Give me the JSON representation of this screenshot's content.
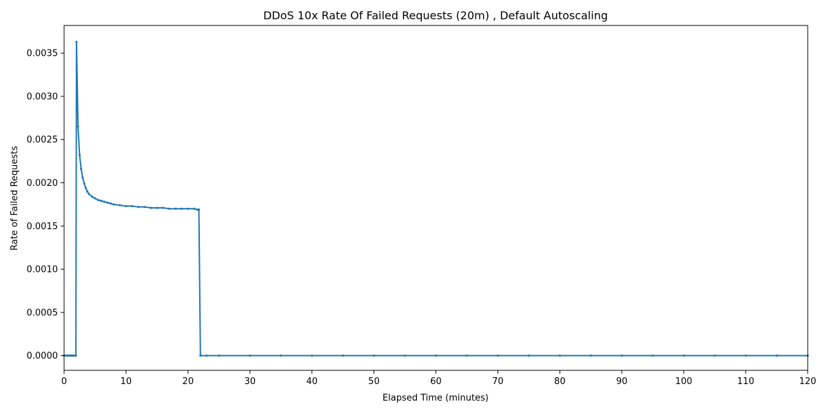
{
  "chart_data": {
    "type": "line",
    "title": "DDoS 10x Rate Of Failed Requests (20m) , Default Autoscaling",
    "xlabel": "Elapsed Time (minutes)",
    "ylabel": "Rate of Failed Requests",
    "xlim": [
      0,
      120
    ],
    "ylim": [
      -0.00017,
      0.00382
    ],
    "xticks": [
      0,
      10,
      20,
      30,
      40,
      50,
      60,
      70,
      80,
      90,
      100,
      110,
      120
    ],
    "yticks": [
      0.0,
      0.0005,
      0.001,
      0.0015,
      0.002,
      0.0025,
      0.003,
      0.0035
    ],
    "xtick_labels": [
      "0",
      "10",
      "20",
      "30",
      "40",
      "50",
      "60",
      "70",
      "80",
      "90",
      "100",
      "110",
      "120"
    ],
    "ytick_labels": [
      "0.0000",
      "0.0005",
      "0.0010",
      "0.0015",
      "0.0020",
      "0.0025",
      "0.0030",
      "0.0035"
    ],
    "grid": false,
    "line_color": "#1f77b4",
    "series": [
      {
        "x": [
          0,
          0.25,
          0.5,
          0.75,
          1.0,
          1.25,
          1.5,
          1.75,
          1.9,
          2.0,
          2.25,
          2.5,
          2.75,
          3.0,
          3.25,
          3.5,
          3.75,
          4.0,
          4.5,
          5.0,
          5.5,
          6.0,
          6.5,
          7.0,
          7.5,
          8.0,
          9.0,
          10.0,
          11.0,
          12.0,
          13.0,
          14.0,
          15.0,
          16.0,
          17.0,
          18.0,
          19.0,
          20.0,
          21.0,
          21.5,
          21.75,
          22.0,
          23.0,
          25.0,
          30.0,
          35.0,
          40.0,
          45.0,
          50.0,
          55.0,
          60.0,
          65.0,
          70.0,
          75.0,
          80.0,
          85.0,
          90.0,
          95.0,
          100.0,
          105.0,
          110.0,
          115.0,
          120.0
        ],
        "y": [
          0,
          0,
          0,
          0,
          0,
          0,
          0,
          0,
          0,
          0.00363,
          0.00265,
          0.00232,
          0.00216,
          0.00206,
          0.00199,
          0.00194,
          0.0019,
          0.00187,
          0.00184,
          0.00182,
          0.0018,
          0.00179,
          0.00178,
          0.00177,
          0.00176,
          0.00175,
          0.00174,
          0.00173,
          0.00173,
          0.00172,
          0.00172,
          0.00171,
          0.00171,
          0.00171,
          0.0017,
          0.0017,
          0.0017,
          0.0017,
          0.0017,
          0.00169,
          0.00169,
          0,
          0,
          0,
          0,
          0,
          0,
          0,
          0,
          0,
          0,
          0,
          0,
          0,
          0,
          0,
          0,
          0,
          0,
          0,
          0,
          0,
          0
        ]
      }
    ]
  }
}
